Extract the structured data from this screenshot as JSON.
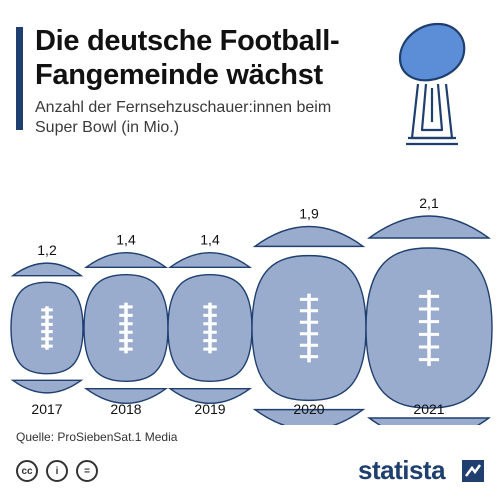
{
  "header": {
    "title": "Die deutsche Football-Fangemeinde wächst",
    "subtitle": "Anzahl der Fernsehzuschauer:innen beim Super Bowl (in Mio.)"
  },
  "footer": {
    "source": "Quelle: ProSiebenSat.1 Media",
    "brand": "statista",
    "license_icons": [
      "cc-icon",
      "attribution-icon",
      "no-derivatives-icon"
    ]
  },
  "colors": {
    "accent": "#1f3f6e",
    "football_fill": "#9aaccd",
    "football_stroke": "#1f3f6e",
    "trophy_ball": "#5b8ed6"
  },
  "chart_data": {
    "type": "bar",
    "categories": [
      "2017",
      "2018",
      "2019",
      "2020",
      "2021"
    ],
    "values": [
      1.2,
      1.4,
      1.4,
      1.9,
      2.1
    ],
    "value_labels": [
      "1,2",
      "1,4",
      "1,4",
      "1,9",
      "2,1"
    ],
    "title": "Die deutsche Football-Fangemeinde wächst",
    "subtitle": "Anzahl der Fernsehzuschauer:innen beim Super Bowl (in Mio.)",
    "ylabel": "",
    "xlabel": "",
    "grid": false,
    "legend": "none"
  }
}
